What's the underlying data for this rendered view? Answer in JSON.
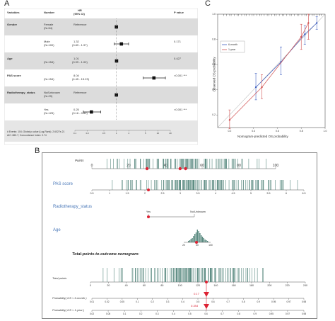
{
  "panels": {
    "a": "A",
    "b": "B",
    "c": "C"
  },
  "forest": {
    "headers": {
      "variables": "Variables",
      "number": "Number",
      "hr": "HR",
      "hr_ci": "(95% CI)",
      "p": "P value"
    },
    "rows": [
      {
        "variable": "Gender",
        "level": "Female",
        "n": "(N=54)",
        "hr": "Reference",
        "ci": "",
        "p": "",
        "shade": true,
        "is_ref": true,
        "est": 1.0
      },
      {
        "variable": "",
        "level": "Male",
        "n": "(N=100)",
        "hr": "1.32",
        "ci": "(0.89 - 1.97)",
        "p": "0.171",
        "shade": false,
        "is_ref": false,
        "est": 1.32,
        "lo": 0.89,
        "hi": 1.97
      },
      {
        "variable": "Age",
        "level": "",
        "n": "(N=154)",
        "hr": "1.01",
        "ci": "(0.99 - 1.02)",
        "p": "0.427",
        "shade": true,
        "is_ref": false,
        "est": 1.01,
        "lo": 0.99,
        "hi": 1.02
      },
      {
        "variable": "PAS score",
        "level": "",
        "n": "(N=154)",
        "hr": "8.04",
        "ci": "(4.45 - 15.23)",
        "p": "<0.001 ***",
        "shade": false,
        "is_ref": false,
        "est": 8.04,
        "lo": 4.45,
        "hi": 15.23
      },
      {
        "variable": "Radiotherapy_status",
        "level": "No/Unknown",
        "n": "(N=29)",
        "hr": "Reference",
        "ci": "",
        "p": "",
        "shade": true,
        "is_ref": true,
        "est": 1.0
      },
      {
        "variable": "",
        "level": "Yes",
        "n": "(N=125)",
        "hr": "0.25",
        "ci": "(0.16 - 0.42)",
        "p": "<0.001 ***",
        "shade": false,
        "is_ref": false,
        "est": 0.25,
        "lo": 0.16,
        "hi": 0.42
      }
    ],
    "footer1": "# Events: 104; Global p-value (Log-Rank): 2.6027e-21",
    "footer2": "AIC: 863.7; Concordance Index: 0.74",
    "axis_ticks": [
      "0.1",
      "0.2",
      "0.5",
      "1",
      "2",
      "5",
      "10",
      "20"
    ]
  },
  "calibration": {
    "xlabel": "Nomogram-predicted OS probability",
    "ylabel": "Observed OS probability",
    "legend": [
      "6-month",
      "1-year"
    ],
    "x_ticks": [
      "0.2",
      "0.4",
      "0.6",
      "0.8",
      "1.0"
    ],
    "y_ticks": [
      "0.2",
      "0.4",
      "0.6",
      "0.8",
      "1.0"
    ],
    "series": [
      {
        "name": "6-month",
        "color": "#4060c0",
        "points": [
          [
            0.42,
            0.42
          ],
          [
            0.63,
            0.62
          ],
          [
            0.83,
            0.84
          ],
          [
            0.93,
            0.93
          ]
        ],
        "err": [
          [
            0.32,
            0.53
          ],
          [
            0.52,
            0.74
          ],
          [
            0.76,
            0.91
          ],
          [
            0.88,
            0.98
          ]
        ]
      },
      {
        "name": "1-year",
        "color": "#d05050",
        "points": [
          [
            0.2,
            0.16
          ],
          [
            0.47,
            0.42
          ],
          [
            0.8,
            0.82
          ],
          [
            0.86,
            0.93
          ]
        ],
        "err": [
          [
            0.09,
            0.24
          ],
          [
            0.33,
            0.52
          ],
          [
            0.72,
            0.92
          ],
          [
            0.8,
            1.0
          ]
        ]
      }
    ]
  },
  "nomogram": {
    "labels": {
      "points": "Points",
      "pas": "PAS score",
      "radio": "Radiotherapy_status",
      "age": "Age",
      "title": "Total-points-to-outcome nomogram:",
      "total": "Total points",
      "p6": "Probability( OS < 6-month )",
      "p1y": "Probability( OS < 1-year )"
    },
    "points_ticks": [
      "0",
      "20",
      "40",
      "60",
      "80",
      "100"
    ],
    "pas_ticks": [
      "0.5",
      "1",
      "1.5",
      "2",
      "2.5",
      "3",
      "3.5",
      "4",
      "4.5",
      "5",
      "5.5",
      "6",
      "6.5"
    ],
    "radio_yes": "Yes",
    "radio_no": "No/Unknown",
    "age_ticks": [
      "20",
      "60",
      "100"
    ],
    "total_ticks": [
      "0",
      "20",
      "40",
      "60",
      "80",
      "100",
      "120",
      "140",
      "160",
      "180",
      "200",
      "220",
      "240"
    ],
    "p6_ticks": [
      "0.01",
      "0.02",
      "0.05",
      "0.1",
      "0.2",
      "0.3",
      "0.4",
      "0.5",
      "0.6",
      "0.7",
      "0.8",
      "0.9",
      "0.95",
      "0.97",
      "0.98"
    ],
    "p1y_ticks": [
      "0.02",
      "0.05",
      "0.1",
      "0.2",
      "0.3",
      "0.4",
      "0.5",
      "0.6",
      "0.7",
      "0.8",
      "0.9",
      "0.95",
      "0.97",
      "0.98"
    ],
    "p6_value": "0.17",
    "p1y_value": "0.354",
    "selected_points": [
      30,
      48,
      51
    ]
  }
}
